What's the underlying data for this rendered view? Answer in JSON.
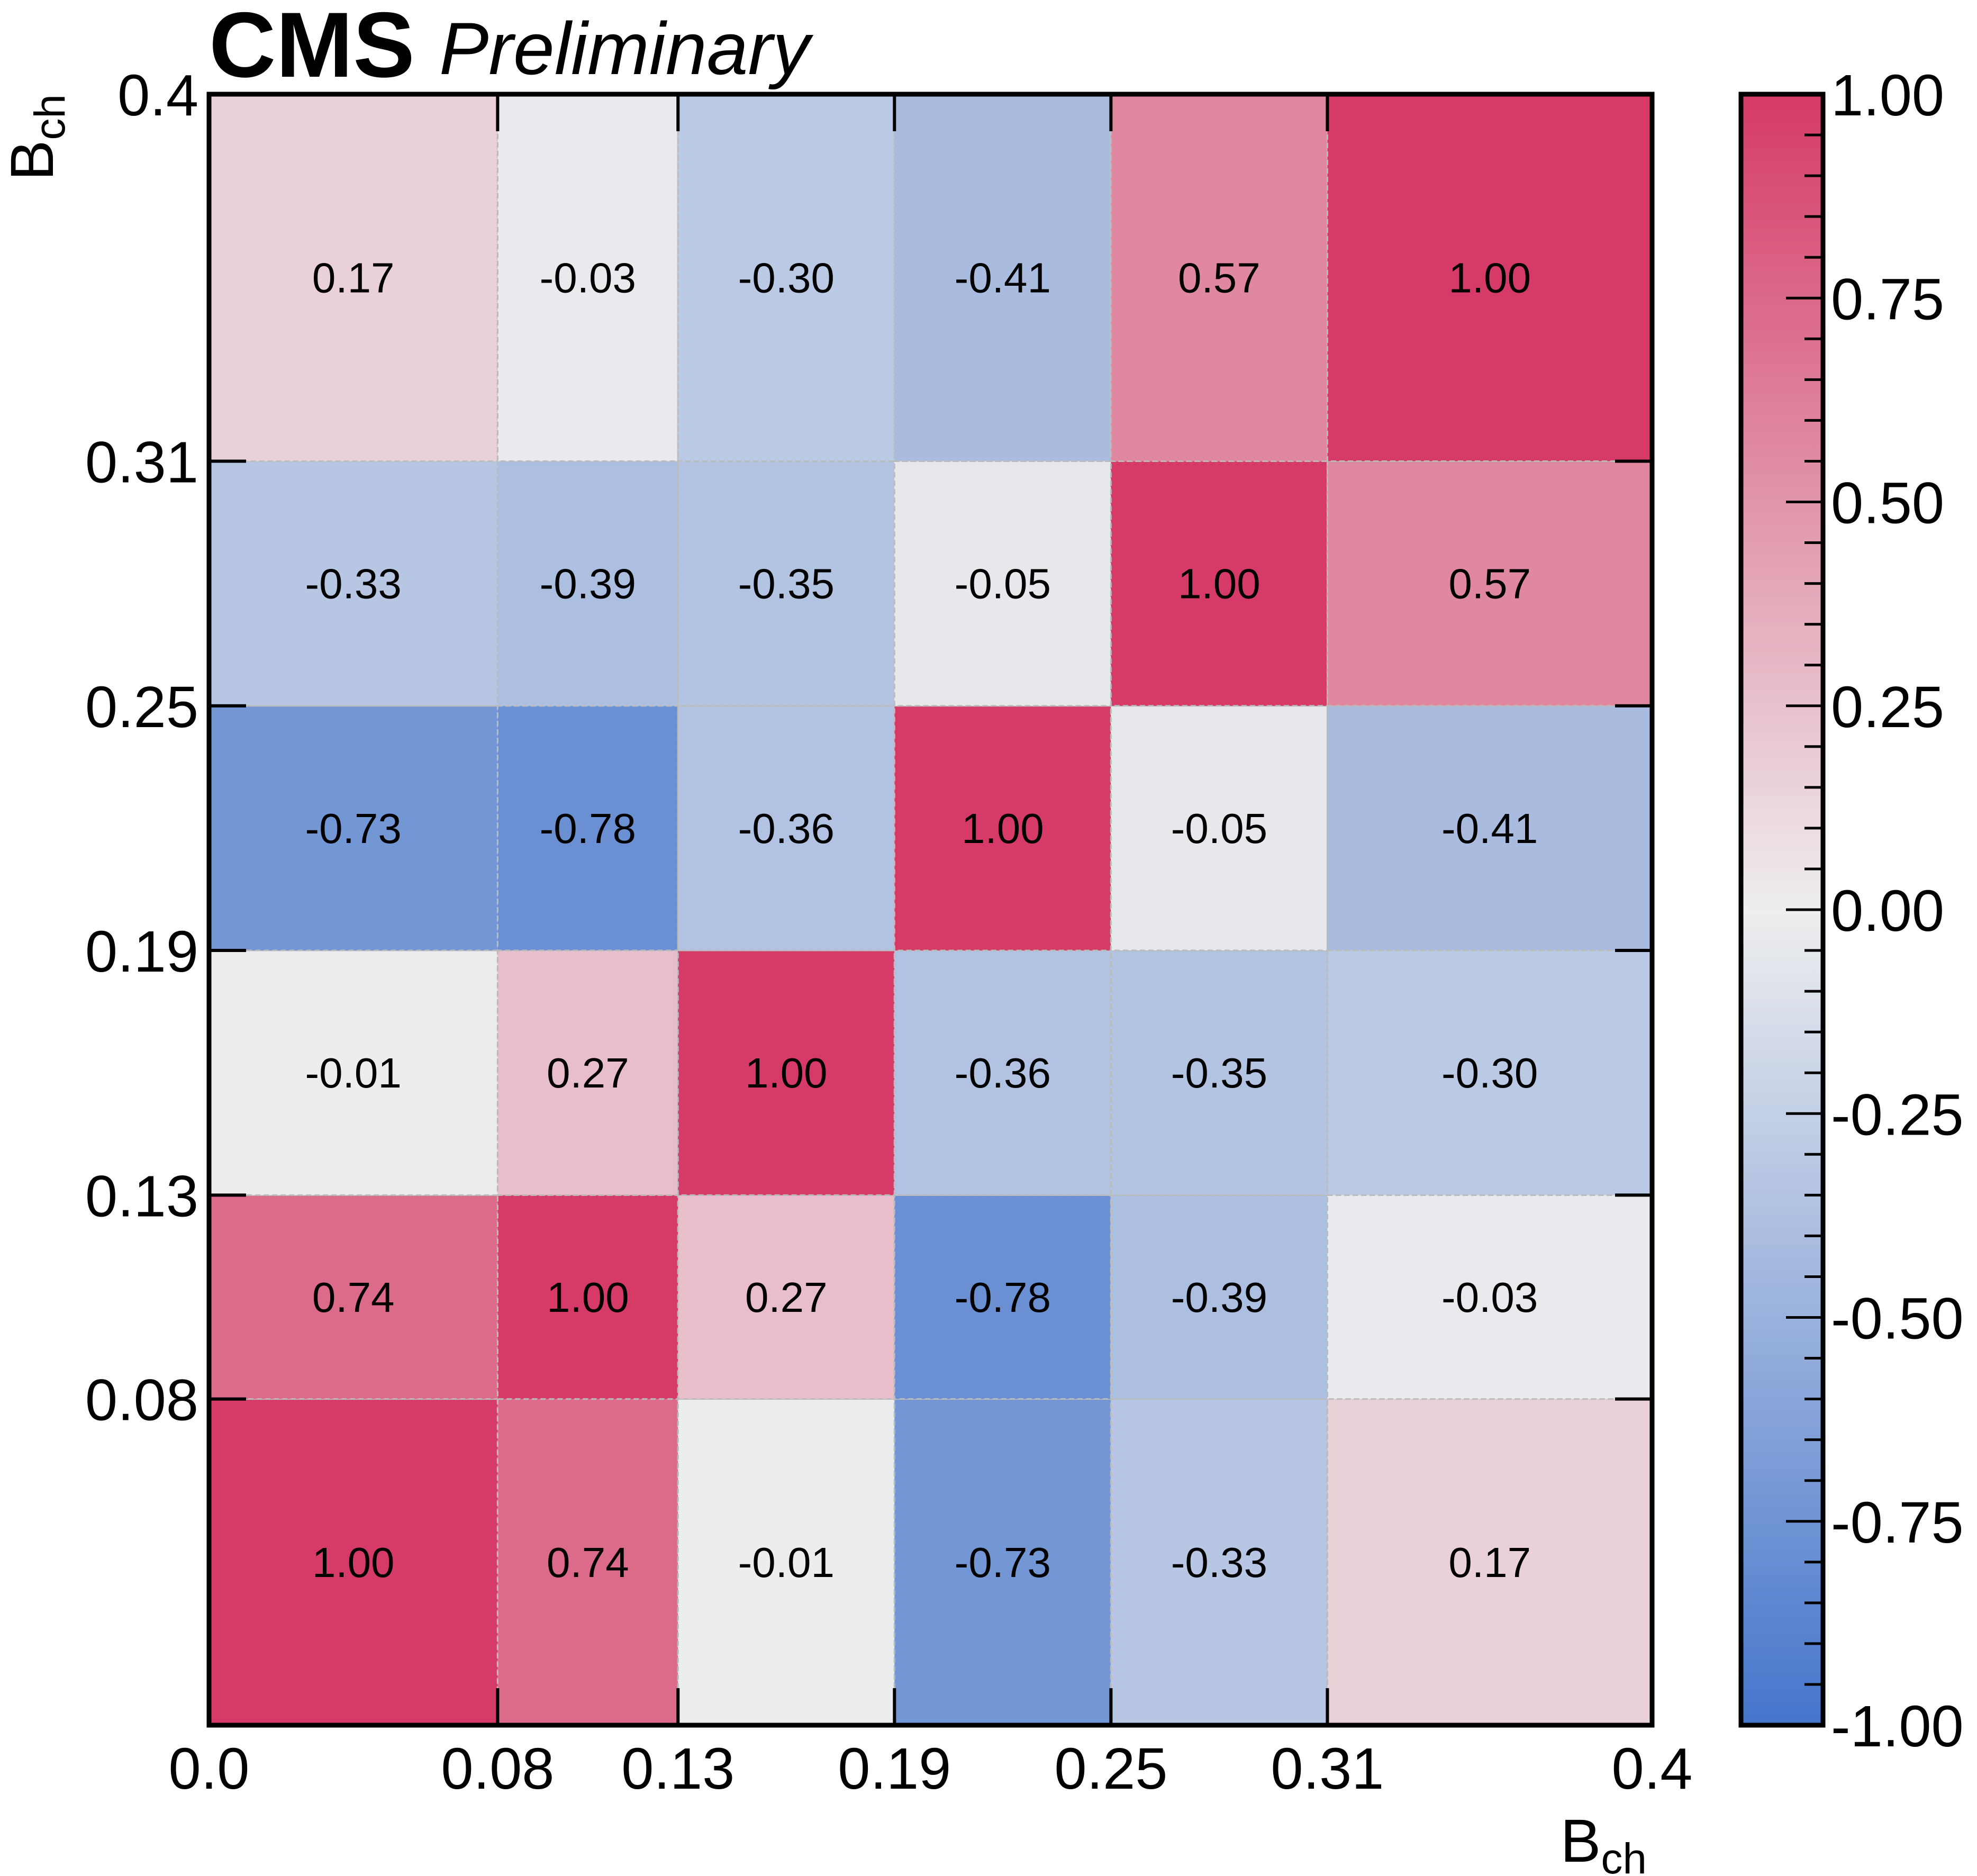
{
  "header": {
    "experiment": "CMS",
    "status": "Preliminary"
  },
  "chart_data": {
    "type": "heatmap",
    "title": "",
    "xlabel": {
      "main": "B",
      "sub": "ch"
    },
    "ylabel": {
      "main": "B",
      "sub": "ch"
    },
    "bin_edges": [
      0.0,
      0.08,
      0.13,
      0.19,
      0.25,
      0.31,
      0.4
    ],
    "x_tick_labels": [
      "0.0",
      "0.08",
      "0.13",
      "0.19",
      "0.25",
      "0.31",
      "0.4"
    ],
    "y_tick_labels": [
      "0.08",
      "0.13",
      "0.19",
      "0.25",
      "0.31",
      "0.4"
    ],
    "xlim": [
      0.0,
      0.4
    ],
    "ylim": [
      0.0,
      0.4
    ],
    "matrix_rows_bottom_to_top": [
      [
        1.0,
        0.74,
        -0.01,
        -0.73,
        -0.33,
        0.17
      ],
      [
        0.74,
        1.0,
        0.27,
        -0.78,
        -0.39,
        -0.03
      ],
      [
        -0.01,
        0.27,
        1.0,
        -0.36,
        -0.35,
        -0.3
      ],
      [
        -0.73,
        -0.78,
        -0.36,
        1.0,
        -0.05,
        -0.41
      ],
      [
        -0.33,
        -0.39,
        -0.35,
        -0.05,
        1.0,
        0.57
      ],
      [
        0.17,
        -0.03,
        -0.3,
        -0.41,
        0.57,
        1.0
      ]
    ],
    "colorbar": {
      "range": [
        -1.0,
        1.0
      ],
      "tick_labels": [
        "1.00",
        "0.75",
        "0.50",
        "0.25",
        "0.00",
        "-0.25",
        "-0.50",
        "-0.75",
        "-1.00"
      ],
      "colors": {
        "min": "#4575CC",
        "mid": "#EEEEEE",
        "max": "#D53B66"
      }
    },
    "grid": true,
    "grid_color": "#BBBBBB"
  }
}
